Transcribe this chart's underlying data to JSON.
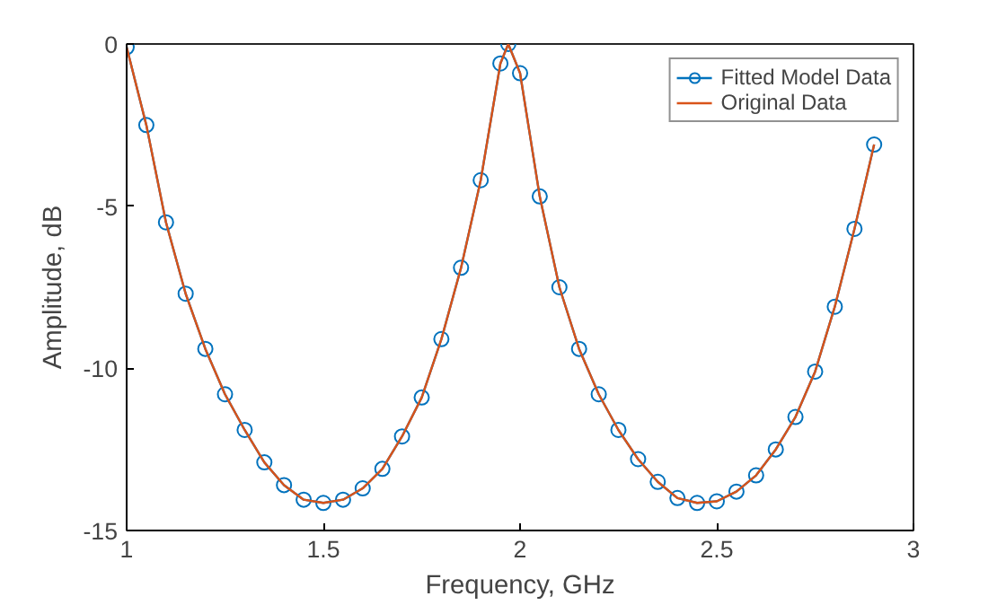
{
  "chart_data": {
    "type": "line",
    "xlabel": "Frequency, GHz",
    "ylabel": "Amplitude, dB",
    "x": [
      1.0,
      1.05,
      1.1,
      1.15,
      1.2,
      1.25,
      1.3,
      1.35,
      1.4,
      1.45,
      1.5,
      1.55,
      1.6,
      1.65,
      1.7,
      1.75,
      1.8,
      1.85,
      1.9,
      1.95,
      1.97,
      2.0,
      2.05,
      2.1,
      2.15,
      2.2,
      2.25,
      2.3,
      2.35,
      2.4,
      2.45,
      2.5,
      2.55,
      2.6,
      2.65,
      2.7,
      2.75,
      2.8,
      2.85,
      2.9
    ],
    "series": [
      {
        "name": "Fitted Model Data",
        "color": "#0072bd",
        "marker": "circle",
        "values": [
          -0.1,
          -2.5,
          -5.5,
          -7.7,
          -9.4,
          -10.8,
          -11.9,
          -12.9,
          -13.6,
          -14.05,
          -14.15,
          -14.05,
          -13.7,
          -13.1,
          -12.1,
          -10.9,
          -9.1,
          -6.9,
          -4.2,
          -0.6,
          0,
          -0.9,
          -4.7,
          -7.5,
          -9.4,
          -10.8,
          -11.9,
          -12.8,
          -13.5,
          -14.0,
          -14.15,
          -14.1,
          -13.8,
          -13.3,
          -12.5,
          -11.5,
          -10.1,
          -8.1,
          -5.7,
          -3.1
        ]
      },
      {
        "name": "Original Data",
        "color": "#d95319",
        "marker": "none",
        "values": [
          -0.1,
          -2.5,
          -5.5,
          -7.7,
          -9.4,
          -10.8,
          -11.9,
          -12.9,
          -13.6,
          -14.05,
          -14.15,
          -14.05,
          -13.7,
          -13.1,
          -12.1,
          -10.9,
          -9.1,
          -6.9,
          -4.2,
          -0.6,
          0,
          -0.9,
          -4.7,
          -7.5,
          -9.4,
          -10.8,
          -11.9,
          -12.8,
          -13.5,
          -14.0,
          -14.15,
          -14.1,
          -13.8,
          -13.3,
          -12.5,
          -11.5,
          -10.1,
          -8.1,
          -5.7,
          -3.1
        ]
      }
    ],
    "xlim": [
      1,
      3
    ],
    "xticks": [
      1,
      1.5,
      2,
      2.5,
      3
    ],
    "ylim": [
      -15,
      0
    ],
    "yticks": [
      -15,
      -10,
      -5,
      0
    ],
    "grid": false,
    "legend": "top right",
    "line_style": "solid"
  }
}
